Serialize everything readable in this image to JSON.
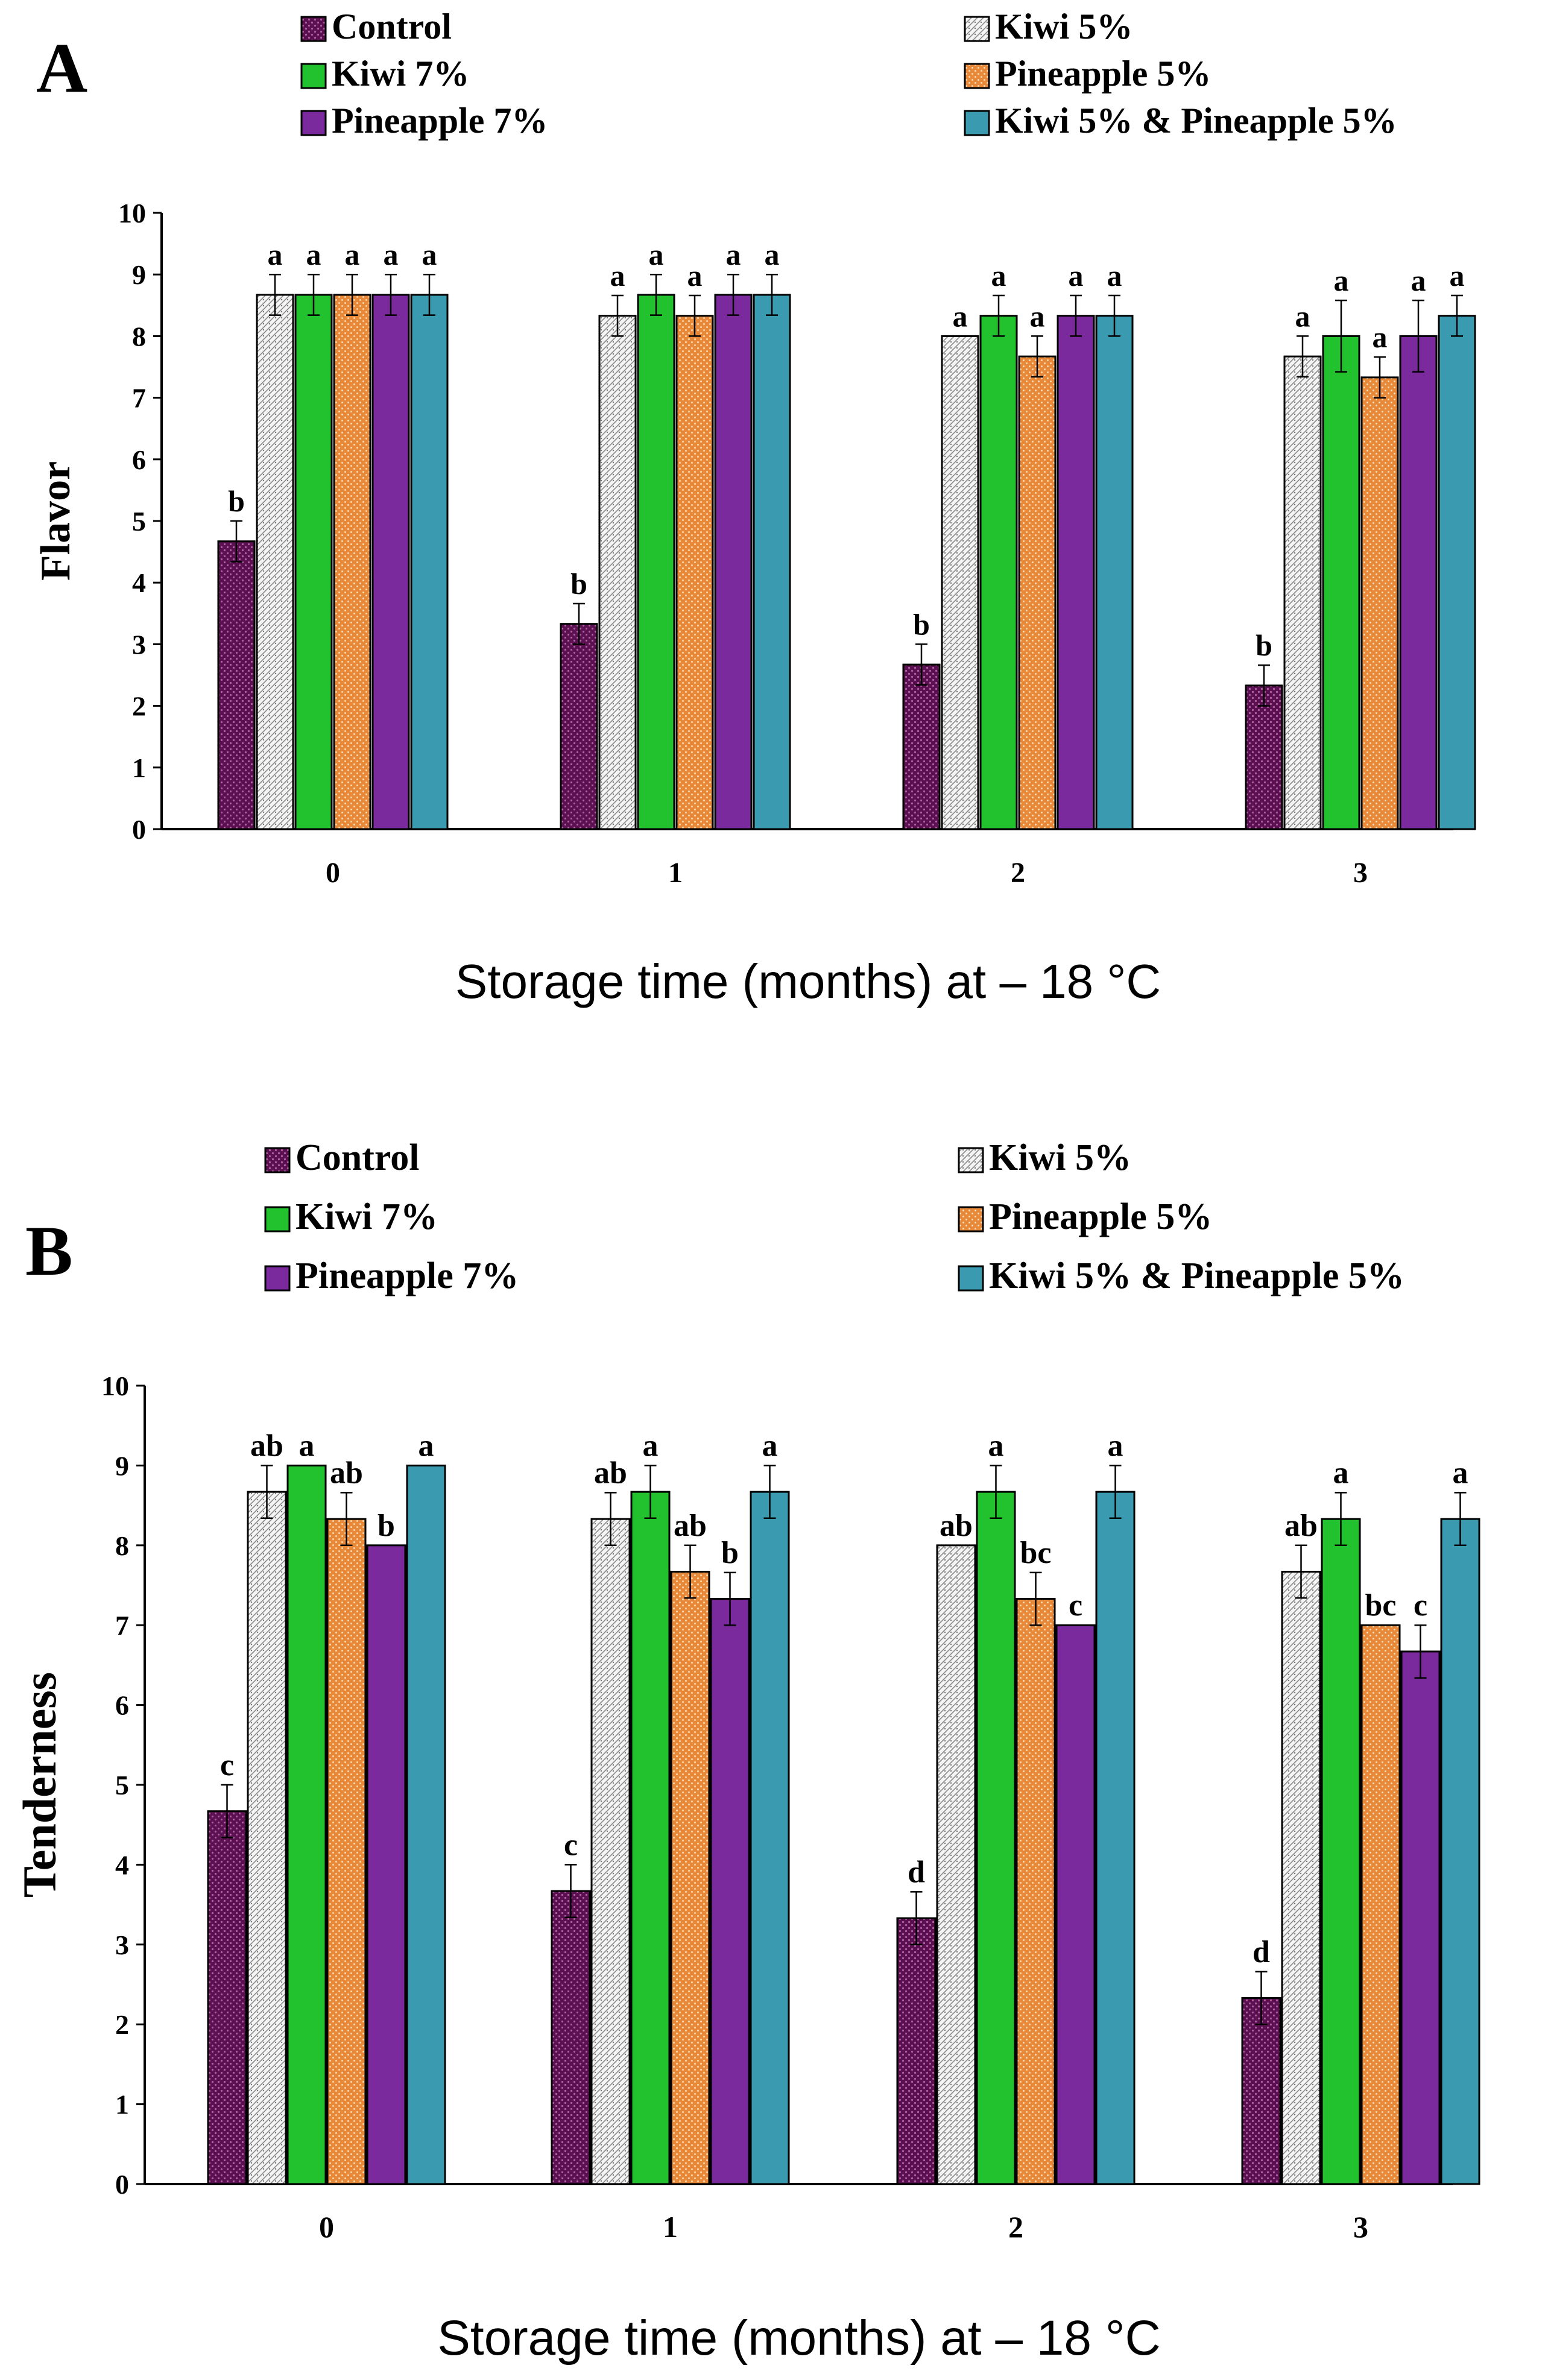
{
  "series_styles": [
    {
      "name": "Control",
      "color": "#5b1052",
      "pattern": "dots-dark"
    },
    {
      "name": "Kiwi 5%",
      "color": "#e6e6e6",
      "pattern": "dots-light"
    },
    {
      "name": "Kiwi 7%",
      "color": "#22c12e",
      "pattern": "solid"
    },
    {
      "name": "Pineapple 5%",
      "color": "#e8893a",
      "pattern": "dots-orange"
    },
    {
      "name": "Pineapple 7%",
      "color": "#7a2a9c",
      "pattern": "solid"
    },
    {
      "name": "Kiwi 5% & Pineapple 5%",
      "color": "#3a9bb0",
      "pattern": "solid"
    }
  ],
  "chart_data": [
    {
      "panel_label": "A",
      "type": "bar",
      "xlabel": "Storage time (months) at – 18 °C",
      "ylabel": "Flavor",
      "ylim": [
        0,
        10
      ],
      "yticks": [
        "0",
        "1",
        "2",
        "3",
        "4",
        "5",
        "6",
        "7",
        "8",
        "9",
        "10"
      ],
      "categories": [
        "0",
        "1",
        "2",
        "3"
      ],
      "legend_position": "top",
      "series": [
        {
          "name": "Control",
          "values": [
            4.67,
            3.33,
            2.67,
            2.33
          ],
          "errors": [
            0.33,
            0.33,
            0.33,
            0.33
          ],
          "labels": [
            "b",
            "b",
            "b",
            "b"
          ]
        },
        {
          "name": "Kiwi 5%",
          "values": [
            8.67,
            8.33,
            8.0,
            7.67
          ],
          "errors": [
            0.33,
            0.33,
            0.0,
            0.33
          ],
          "labels": [
            "a",
            "a",
            "a",
            "a"
          ]
        },
        {
          "name": "Kiwi 7%",
          "values": [
            8.67,
            8.67,
            8.33,
            8.0
          ],
          "errors": [
            0.33,
            0.33,
            0.33,
            0.58
          ],
          "labels": [
            "a",
            "a",
            "a",
            "a"
          ]
        },
        {
          "name": "Pineapple 5%",
          "values": [
            8.67,
            8.33,
            7.67,
            7.33
          ],
          "errors": [
            0.33,
            0.33,
            0.33,
            0.33
          ],
          "labels": [
            "a",
            "a",
            "a",
            "a"
          ]
        },
        {
          "name": "Pineapple 7%",
          "values": [
            8.67,
            8.67,
            8.33,
            8.0
          ],
          "errors": [
            0.33,
            0.33,
            0.33,
            0.58
          ],
          "labels": [
            "a",
            "a",
            "a",
            "a"
          ]
        },
        {
          "name": "Kiwi 5% & Pineapple 5%",
          "values": [
            8.67,
            8.67,
            8.33,
            8.33
          ],
          "errors": [
            0.33,
            0.33,
            0.33,
            0.33
          ],
          "labels": [
            "a",
            "a",
            "a",
            "a"
          ]
        }
      ]
    },
    {
      "panel_label": "B",
      "type": "bar",
      "xlabel": "Storage time (months) at – 18 °C",
      "ylabel": "Tenderness",
      "ylim": [
        0,
        10
      ],
      "yticks": [
        "0",
        "1",
        "2",
        "3",
        "4",
        "5",
        "6",
        "7",
        "8",
        "9",
        "10"
      ],
      "categories": [
        "0",
        "1",
        "2",
        "3"
      ],
      "legend_position": "top",
      "series": [
        {
          "name": "Control",
          "values": [
            4.67,
            3.67,
            3.33,
            2.33
          ],
          "errors": [
            0.33,
            0.33,
            0.33,
            0.33
          ],
          "labels": [
            "c",
            "c",
            "d",
            "d"
          ]
        },
        {
          "name": "Kiwi 5%",
          "values": [
            8.67,
            8.33,
            8.0,
            7.67
          ],
          "errors": [
            0.33,
            0.33,
            0.0,
            0.33
          ],
          "labels": [
            "ab",
            "ab",
            "ab",
            "ab"
          ]
        },
        {
          "name": "Kiwi 7%",
          "values": [
            9.0,
            8.67,
            8.67,
            8.33
          ],
          "errors": [
            0.0,
            0.33,
            0.33,
            0.33
          ],
          "labels": [
            "a",
            "a",
            "a",
            "a"
          ]
        },
        {
          "name": "Pineapple 5%",
          "values": [
            8.33,
            7.67,
            7.33,
            7.0
          ],
          "errors": [
            0.33,
            0.33,
            0.33,
            0.0
          ],
          "labels": [
            "ab",
            "ab",
            "bc",
            "bc"
          ]
        },
        {
          "name": "Pineapple 7%",
          "values": [
            8.0,
            7.33,
            7.0,
            6.67
          ],
          "errors": [
            0.0,
            0.33,
            0.0,
            0.33
          ],
          "labels": [
            "b",
            "b",
            "c",
            "c"
          ]
        },
        {
          "name": "Kiwi 5% & Pineapple 5%",
          "values": [
            9.0,
            8.67,
            8.67,
            8.33
          ],
          "errors": [
            0.0,
            0.33,
            0.33,
            0.33
          ],
          "labels": [
            "a",
            "a",
            "a",
            "a"
          ]
        }
      ]
    }
  ]
}
